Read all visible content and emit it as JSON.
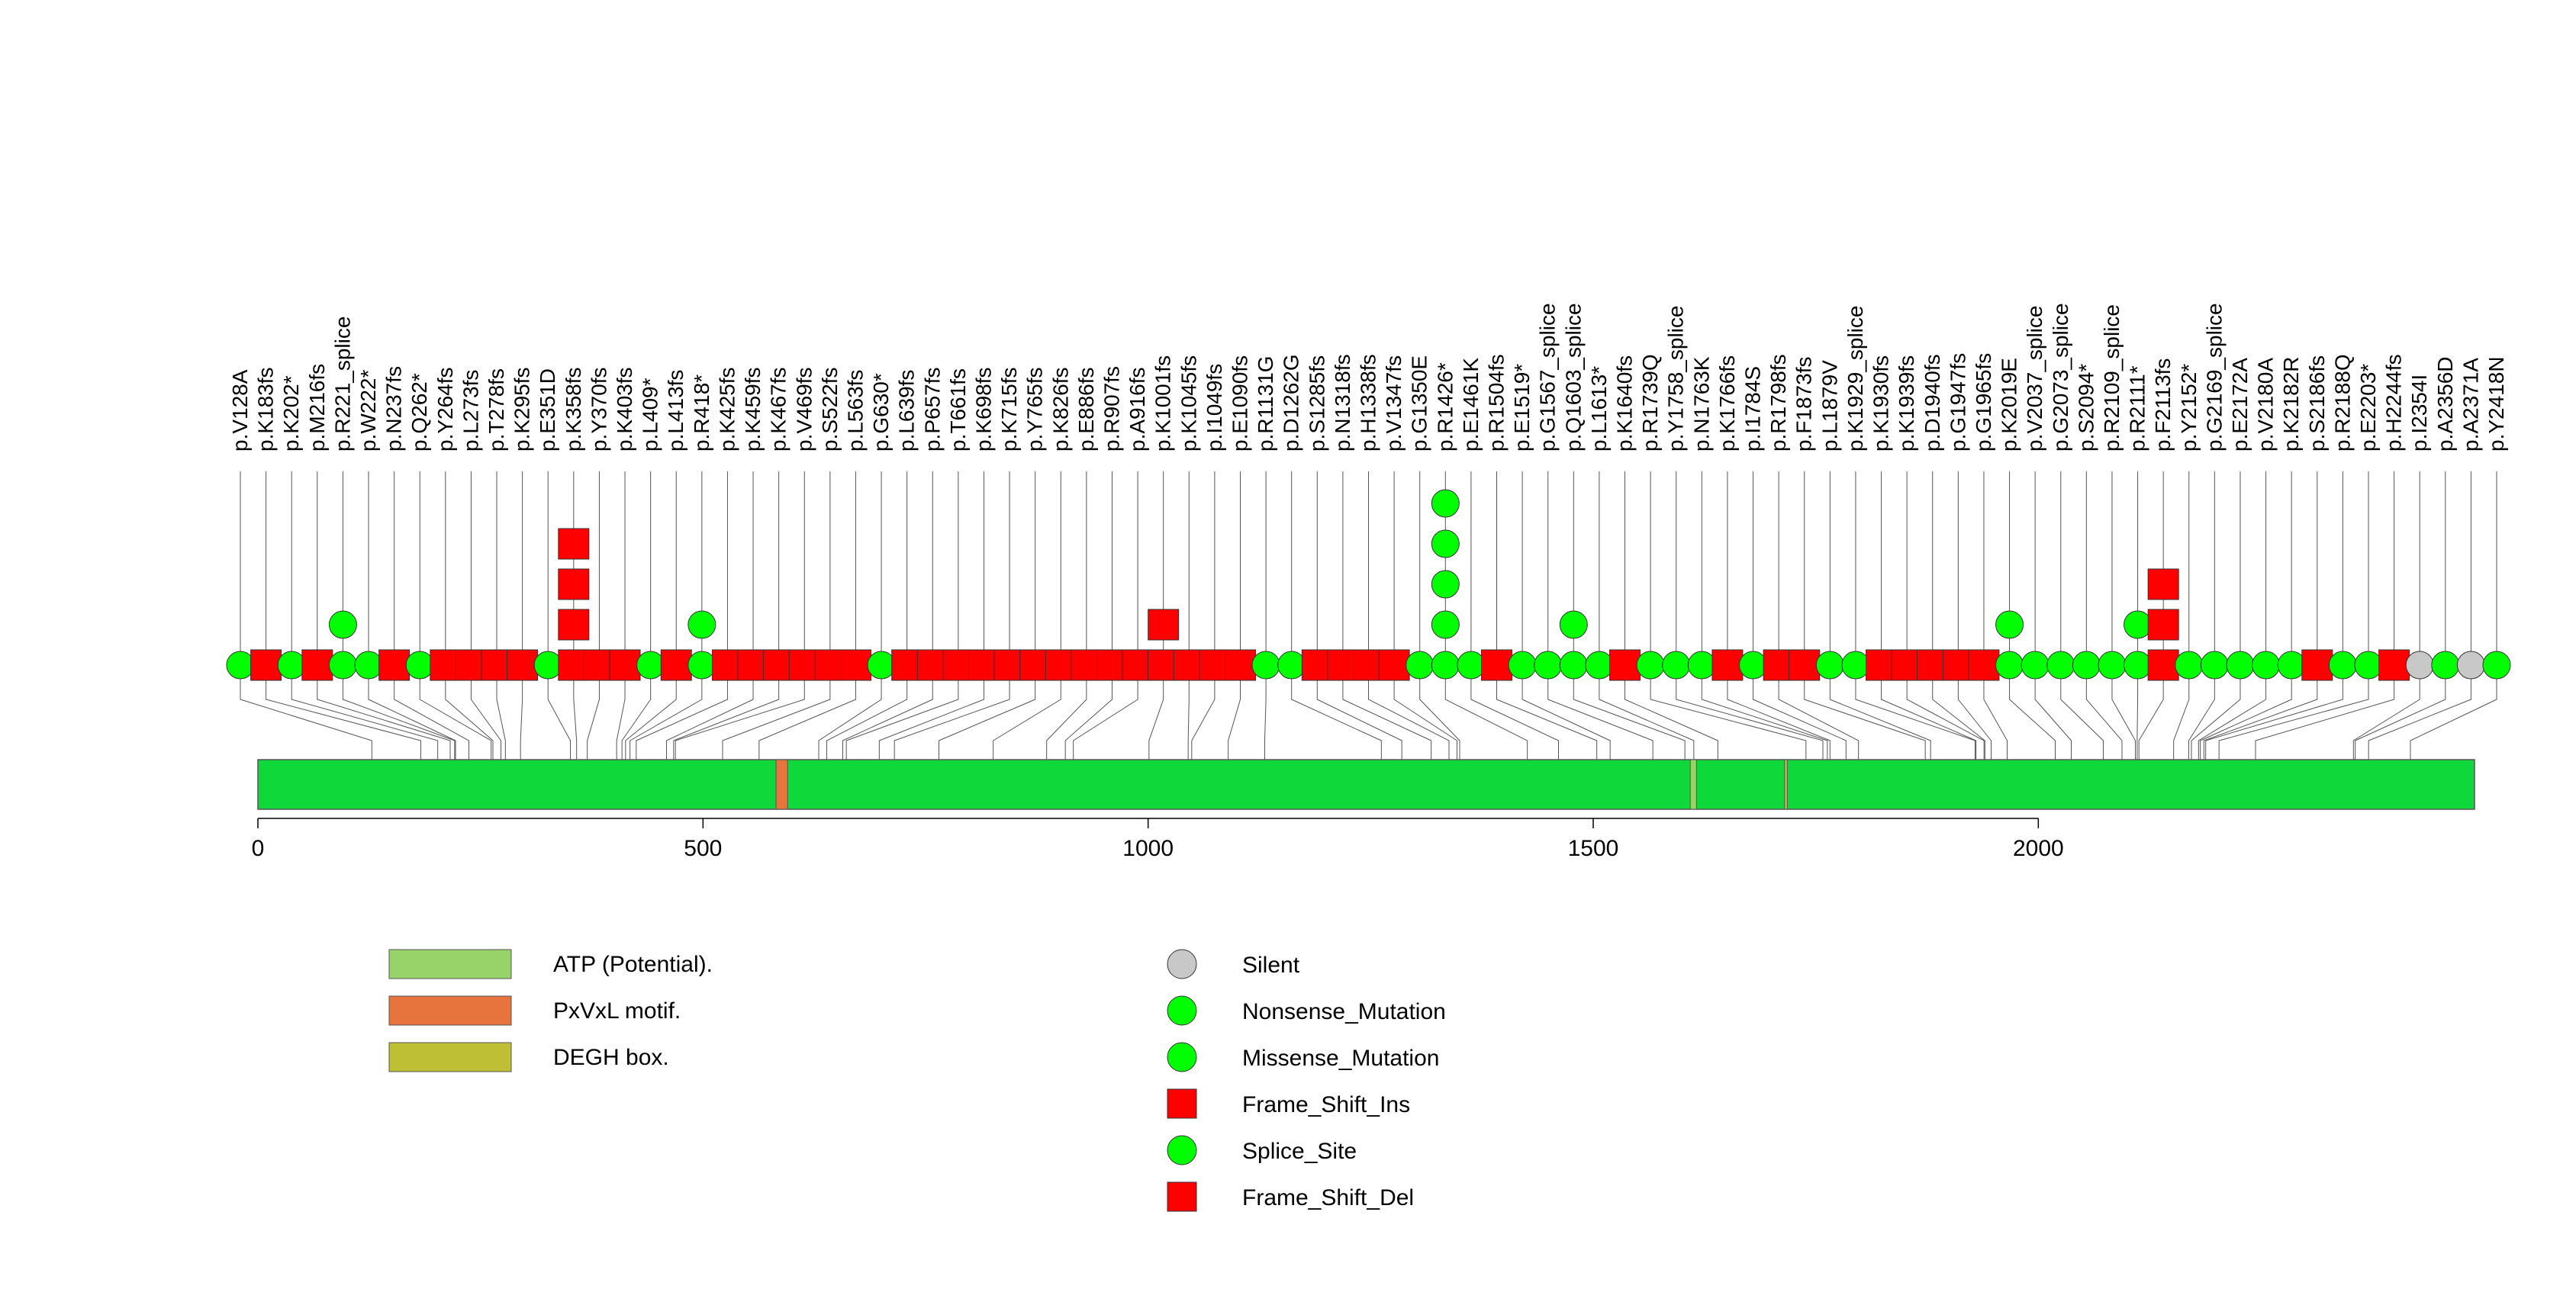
{
  "chart_data": {
    "type": "lollipop",
    "protein_length": 2490,
    "xlim": [
      0,
      2490
    ],
    "x_ticks": [
      0,
      500,
      1000,
      1500,
      2000
    ],
    "colors": {
      "Silent": "#c8c8c8",
      "Nonsense_Mutation": "#00ff00",
      "Missense_Mutation": "#00ff00",
      "Frame_Shift_Ins": "#ff0000",
      "Splice_Site": "#00ff00",
      "Frame_Shift_Del": "#ff0000",
      "protein_bar": "#0fd93a",
      "domain_ATP": "#98d36a",
      "domain_PxVxL": "#e8743d",
      "domain_DEGH": "#bfbf35"
    },
    "domains": [
      {
        "name": "ATP (Potential).",
        "start": 1609,
        "end": 1616
      },
      {
        "name": "PxVxL motif.",
        "start": 582,
        "end": 595
      },
      {
        "name": "DEGH box.",
        "start": 1715,
        "end": 1718
      }
    ],
    "mutations": [
      {
        "label": "p.V128A",
        "position": 128,
        "type": "Missense_Mutation",
        "count": 1
      },
      {
        "label": "p.K183fs",
        "position": 183,
        "type": "Frame_Shift_Del",
        "count": 1
      },
      {
        "label": "p.K202*",
        "position": 202,
        "type": "Nonsense_Mutation",
        "count": 1
      },
      {
        "label": "p.M216fs",
        "position": 216,
        "type": "Frame_Shift_Del",
        "count": 1
      },
      {
        "label": "p.R221_splice",
        "position": 221,
        "type": "Splice_Site",
        "count": 2
      },
      {
        "label": "p.W222*",
        "position": 222,
        "type": "Nonsense_Mutation",
        "count": 1
      },
      {
        "label": "p.N237fs",
        "position": 237,
        "type": "Frame_Shift_Del",
        "count": 1
      },
      {
        "label": "p.Q262*",
        "position": 262,
        "type": "Nonsense_Mutation",
        "count": 1
      },
      {
        "label": "p.Y264fs",
        "position": 264,
        "type": "Frame_Shift_Del",
        "count": 1
      },
      {
        "label": "p.L273fs",
        "position": 273,
        "type": "Frame_Shift_Del",
        "count": 1
      },
      {
        "label": "p.T278fs",
        "position": 278,
        "type": "Frame_Shift_Del",
        "count": 1
      },
      {
        "label": "p.K295fs",
        "position": 295,
        "type": "Frame_Shift_Del",
        "count": 1
      },
      {
        "label": "p.E351D",
        "position": 351,
        "type": "Missense_Mutation",
        "count": 1
      },
      {
        "label": "p.K358fs",
        "position": 358,
        "type": "Frame_Shift_Del",
        "count": 4
      },
      {
        "label": "p.Y370fs",
        "position": 370,
        "type": "Frame_Shift_Del",
        "count": 1
      },
      {
        "label": "p.K403fs",
        "position": 403,
        "type": "Frame_Shift_Del",
        "count": 1
      },
      {
        "label": "p.L409*",
        "position": 409,
        "type": "Nonsense_Mutation",
        "count": 1
      },
      {
        "label": "p.L413fs",
        "position": 413,
        "type": "Frame_Shift_Del",
        "count": 1
      },
      {
        "label": "p.R418*",
        "position": 418,
        "type": "Nonsense_Mutation",
        "count": 2
      },
      {
        "label": "p.K425fs",
        "position": 425,
        "type": "Frame_Shift_Del",
        "count": 1
      },
      {
        "label": "p.K459fs",
        "position": 459,
        "type": "Frame_Shift_Del",
        "count": 1
      },
      {
        "label": "p.K467fs",
        "position": 467,
        "type": "Frame_Shift_Del",
        "count": 1
      },
      {
        "label": "p.V469fs",
        "position": 469,
        "type": "Frame_Shift_Del",
        "count": 1
      },
      {
        "label": "p.S522fs",
        "position": 522,
        "type": "Frame_Shift_Del",
        "count": 1
      },
      {
        "label": "p.L563fs",
        "position": 563,
        "type": "Frame_Shift_Del",
        "count": 1
      },
      {
        "label": "p.G630*",
        "position": 630,
        "type": "Nonsense_Mutation",
        "count": 1
      },
      {
        "label": "p.L639fs",
        "position": 639,
        "type": "Frame_Shift_Del",
        "count": 1
      },
      {
        "label": "p.P657fs",
        "position": 657,
        "type": "Frame_Shift_Del",
        "count": 1
      },
      {
        "label": "p.T661fs",
        "position": 661,
        "type": "Frame_Shift_Del",
        "count": 1
      },
      {
        "label": "p.K698fs",
        "position": 698,
        "type": "Frame_Shift_Del",
        "count": 1
      },
      {
        "label": "p.K715fs",
        "position": 715,
        "type": "Frame_Shift_Del",
        "count": 1
      },
      {
        "label": "p.Y765fs",
        "position": 765,
        "type": "Frame_Shift_Del",
        "count": 1
      },
      {
        "label": "p.K826fs",
        "position": 826,
        "type": "Frame_Shift_Del",
        "count": 1
      },
      {
        "label": "p.E886fs",
        "position": 886,
        "type": "Frame_Shift_Del",
        "count": 1
      },
      {
        "label": "p.R907fs",
        "position": 907,
        "type": "Frame_Shift_Del",
        "count": 1
      },
      {
        "label": "p.A916fs",
        "position": 916,
        "type": "Frame_Shift_Del",
        "count": 1
      },
      {
        "label": "p.K1001fs",
        "position": 1001,
        "type": "Frame_Shift_Del",
        "count": 2
      },
      {
        "label": "p.K1045fs",
        "position": 1045,
        "type": "Frame_Shift_Del",
        "count": 1
      },
      {
        "label": "p.I1049fs",
        "position": 1049,
        "type": "Frame_Shift_Del",
        "count": 1
      },
      {
        "label": "p.E1090fs",
        "position": 1090,
        "type": "Frame_Shift_Del",
        "count": 1
      },
      {
        "label": "p.R1131G",
        "position": 1131,
        "type": "Missense_Mutation",
        "count": 1
      },
      {
        "label": "p.D1262G",
        "position": 1262,
        "type": "Missense_Mutation",
        "count": 1
      },
      {
        "label": "p.S1285fs",
        "position": 1285,
        "type": "Frame_Shift_Del",
        "count": 1
      },
      {
        "label": "p.N1318fs",
        "position": 1318,
        "type": "Frame_Shift_Del",
        "count": 1
      },
      {
        "label": "p.H1338fs",
        "position": 1338,
        "type": "Frame_Shift_Del",
        "count": 1
      },
      {
        "label": "p.V1347fs",
        "position": 1347,
        "type": "Frame_Shift_Del",
        "count": 1
      },
      {
        "label": "p.G1350E",
        "position": 1350,
        "type": "Missense_Mutation",
        "count": 1
      },
      {
        "label": "p.R1426*",
        "position": 1426,
        "type": "Nonsense_Mutation",
        "count": 5
      },
      {
        "label": "p.E1461K",
        "position": 1461,
        "type": "Missense_Mutation",
        "count": 1
      },
      {
        "label": "p.R1504fs",
        "position": 1504,
        "type": "Frame_Shift_Del",
        "count": 1
      },
      {
        "label": "p.E1519*",
        "position": 1519,
        "type": "Nonsense_Mutation",
        "count": 1
      },
      {
        "label": "p.G1567_splice",
        "position": 1567,
        "type": "Splice_Site",
        "count": 1
      },
      {
        "label": "p.Q1603_splice",
        "position": 1603,
        "type": "Splice_Site",
        "count": 2
      },
      {
        "label": "p.L1613*",
        "position": 1613,
        "type": "Nonsense_Mutation",
        "count": 1
      },
      {
        "label": "p.K1640fs",
        "position": 1640,
        "type": "Frame_Shift_Del",
        "count": 1
      },
      {
        "label": "p.R1739Q",
        "position": 1739,
        "type": "Missense_Mutation",
        "count": 1
      },
      {
        "label": "p.Y1758_splice",
        "position": 1758,
        "type": "Splice_Site",
        "count": 1
      },
      {
        "label": "p.N1763K",
        "position": 1763,
        "type": "Missense_Mutation",
        "count": 1
      },
      {
        "label": "p.K1766fs",
        "position": 1766,
        "type": "Frame_Shift_Del",
        "count": 1
      },
      {
        "label": "p.I1784S",
        "position": 1784,
        "type": "Missense_Mutation",
        "count": 1
      },
      {
        "label": "p.R1798fs",
        "position": 1798,
        "type": "Frame_Shift_Del",
        "count": 1
      },
      {
        "label": "p.F1873fs",
        "position": 1873,
        "type": "Frame_Shift_Del",
        "count": 1
      },
      {
        "label": "p.L1879V",
        "position": 1879,
        "type": "Missense_Mutation",
        "count": 1
      },
      {
        "label": "p.K1929_splice",
        "position": 1929,
        "type": "Splice_Site",
        "count": 1
      },
      {
        "label": "p.K1930fs",
        "position": 1930,
        "type": "Frame_Shift_Del",
        "count": 1
      },
      {
        "label": "p.K1939fs",
        "position": 1939,
        "type": "Frame_Shift_Del",
        "count": 1
      },
      {
        "label": "p.D1940fs",
        "position": 1940,
        "type": "Frame_Shift_Del",
        "count": 1
      },
      {
        "label": "p.G1947fs",
        "position": 1947,
        "type": "Frame_Shift_Del",
        "count": 1
      },
      {
        "label": "p.G1965fs",
        "position": 1965,
        "type": "Frame_Shift_Del",
        "count": 1
      },
      {
        "label": "p.K2019E",
        "position": 2019,
        "type": "Missense_Mutation",
        "count": 2
      },
      {
        "label": "p.V2037_splice",
        "position": 2037,
        "type": "Splice_Site",
        "count": 1
      },
      {
        "label": "p.G2073_splice",
        "position": 2073,
        "type": "Splice_Site",
        "count": 1
      },
      {
        "label": "p.S2094*",
        "position": 2094,
        "type": "Nonsense_Mutation",
        "count": 1
      },
      {
        "label": "p.R2109_splice",
        "position": 2109,
        "type": "Splice_Site",
        "count": 1
      },
      {
        "label": "p.R2111*",
        "position": 2111,
        "type": "Nonsense_Mutation",
        "count": 2
      },
      {
        "label": "p.F2113fs",
        "position": 2113,
        "type": "Frame_Shift_Del",
        "count": 3
      },
      {
        "label": "p.Y2152*",
        "position": 2152,
        "type": "Nonsense_Mutation",
        "count": 1
      },
      {
        "label": "p.G2169_splice",
        "position": 2169,
        "type": "Splice_Site",
        "count": 1
      },
      {
        "label": "p.E2172A",
        "position": 2172,
        "type": "Missense_Mutation",
        "count": 1
      },
      {
        "label": "p.V2180A",
        "position": 2180,
        "type": "Missense_Mutation",
        "count": 1
      },
      {
        "label": "p.K2182R",
        "position": 2182,
        "type": "Missense_Mutation",
        "count": 1
      },
      {
        "label": "p.S2186fs",
        "position": 2186,
        "type": "Frame_Shift_Del",
        "count": 1
      },
      {
        "label": "p.R2188Q",
        "position": 2188,
        "type": "Missense_Mutation",
        "count": 1
      },
      {
        "label": "p.E2203*",
        "position": 2203,
        "type": "Nonsense_Mutation",
        "count": 1
      },
      {
        "label": "p.H2244fs",
        "position": 2244,
        "type": "Frame_Shift_Del",
        "count": 1
      },
      {
        "label": "p.I2354I",
        "position": 2354,
        "type": "Silent",
        "count": 1
      },
      {
        "label": "p.A2356D",
        "position": 2356,
        "type": "Missense_Mutation",
        "count": 1
      },
      {
        "label": "p.A2371A",
        "position": 2371,
        "type": "Silent",
        "count": 1
      },
      {
        "label": "p.Y2418N",
        "position": 2418,
        "type": "Missense_Mutation",
        "count": 1
      }
    ]
  },
  "legend": {
    "domains": [
      {
        "label": "ATP (Potential).",
        "color": "#98d36a"
      },
      {
        "label": "PxVxL motif.",
        "color": "#e8743d"
      },
      {
        "label": "DEGH box.",
        "color": "#bfbf35"
      }
    ],
    "mutation_types": [
      {
        "label": "Silent",
        "shape": "circle",
        "color": "#c8c8c8"
      },
      {
        "label": "Nonsense_Mutation",
        "shape": "circle",
        "color": "#00ff00"
      },
      {
        "label": "Missense_Mutation",
        "shape": "circle",
        "color": "#00ff00"
      },
      {
        "label": "Frame_Shift_Ins",
        "shape": "square",
        "color": "#ff0000"
      },
      {
        "label": "Splice_Site",
        "shape": "circle",
        "color": "#00ff00"
      },
      {
        "label": "Frame_Shift_Del",
        "shape": "square",
        "color": "#ff0000"
      }
    ]
  }
}
